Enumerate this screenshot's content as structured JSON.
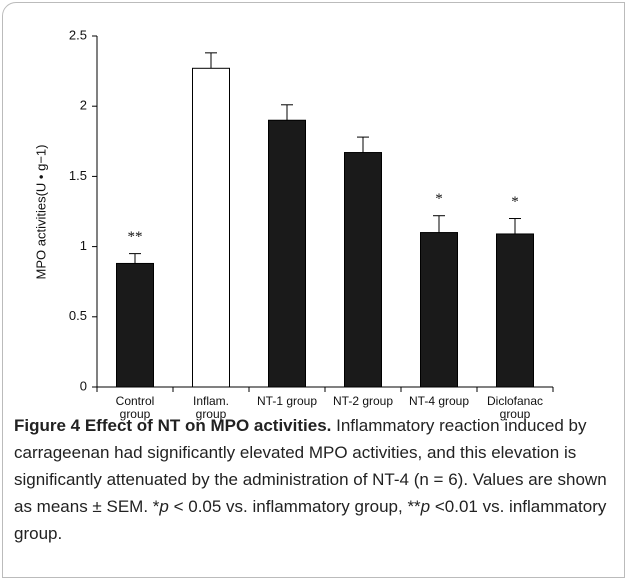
{
  "chart_data": {
    "type": "bar",
    "ylabel": "MPO activities(U • g−1)",
    "categories": [
      "Control group",
      "Inflam. group",
      "NT-1 group",
      "NT-2 group",
      "NT-4 group",
      "Diclofanac group"
    ],
    "values": [
      0.88,
      2.27,
      1.9,
      1.67,
      1.1,
      1.09
    ],
    "errors": [
      0.07,
      0.11,
      0.11,
      0.11,
      0.12,
      0.11
    ],
    "colors": [
      "#1a1a1a",
      "#ffffff",
      "#1a1a1a",
      "#1a1a1a",
      "#1a1a1a",
      "#1a1a1a"
    ],
    "significance": [
      "**",
      null,
      null,
      null,
      "*",
      "*"
    ],
    "ylim": [
      0,
      2.5
    ],
    "yticks": [
      0,
      0.5,
      1,
      1.5,
      2,
      2.5
    ],
    "grid": false
  },
  "caption": {
    "title": "Figure 4 Effect of NT on MPO activities.",
    "segments": [
      " Inflammatory reaction induced by carrageenan had significantly elevated MPO activities, and this elevation is significantly attenuated by the administration of NT-4 (n = 6). Values are shown as means ± SEM. *",
      "p",
      " < 0.05 vs. inflammatory group, **",
      "p",
      " <0.01 vs. inflammatory group."
    ]
  }
}
